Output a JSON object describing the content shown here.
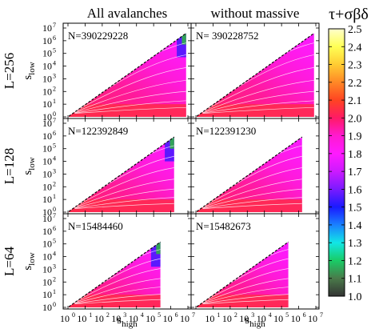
{
  "chart_data": {
    "type": "heatmap",
    "column_titles": [
      "All avalanches",
      "without massive"
    ],
    "colorbar": {
      "label": "τ+σβδ",
      "min": 1.0,
      "max": 2.5,
      "ticks": [
        "2.5",
        "2.4",
        "2.3",
        "2.2",
        "2.1",
        "2.0",
        "1.9",
        "1.8",
        "1.7",
        "1.6",
        "1.5",
        "1.4",
        "1.3",
        "1.2",
        "1.1",
        "1.0"
      ],
      "colormap": [
        "#333333",
        "#4a7a4a",
        "#19cc66",
        "#12e6e6",
        "#1a80ff",
        "#1a1aff",
        "#7a1aff",
        "#cc1aff",
        "#ff1aff",
        "#ff1ad0",
        "#ff1a66",
        "#ff4422",
        "#ff8826",
        "#ffcc33",
        "#ffff55",
        "#ffffcc"
      ]
    },
    "x_axis": {
      "label": "s",
      "label_subscript": "high",
      "ticks": [
        "10",
        "10",
        "10",
        "10",
        "10",
        "10",
        "10",
        "10"
      ],
      "tick_exponents": [
        "0",
        "1",
        "2",
        "3",
        "4",
        "5",
        "6",
        "7"
      ],
      "range_log10": [
        0,
        7
      ]
    },
    "y_axis": {
      "label": "s",
      "label_subscript": "low",
      "ticks": [
        "10",
        "10",
        "10",
        "10",
        "10",
        "10",
        "10",
        "10"
      ],
      "tick_exponents": [
        "0",
        "1",
        "2",
        "3",
        "4",
        "5",
        "6",
        "7"
      ],
      "range_log10": [
        0,
        7
      ]
    },
    "row_labels": [
      "L=256",
      "L=128",
      "L=64"
    ],
    "panels": [
      {
        "row": 0,
        "col": 0,
        "label": "N=390229228",
        "cutoff_log10": 6.9,
        "fan_scale": 1.0,
        "massive": true
      },
      {
        "row": 0,
        "col": 1,
        "label": "N= 390228752",
        "cutoff_log10": 6.9,
        "fan_scale": 1.0,
        "massive": false
      },
      {
        "row": 1,
        "col": 0,
        "label": "N=122392849",
        "cutoff_log10": 6.2,
        "fan_scale": 1.0,
        "massive": true
      },
      {
        "row": 1,
        "col": 1,
        "label": "N=122391230",
        "cutoff_log10": 6.2,
        "fan_scale": 1.0,
        "massive": false
      },
      {
        "row": 2,
        "col": 0,
        "label": "N=15484460",
        "cutoff_log10": 5.4,
        "fan_scale": 1.0,
        "massive": true
      },
      {
        "row": 2,
        "col": 1,
        "label": "N=15482673",
        "cutoff_log10": 5.4,
        "fan_scale": 1.0,
        "massive": false
      }
    ]
  }
}
